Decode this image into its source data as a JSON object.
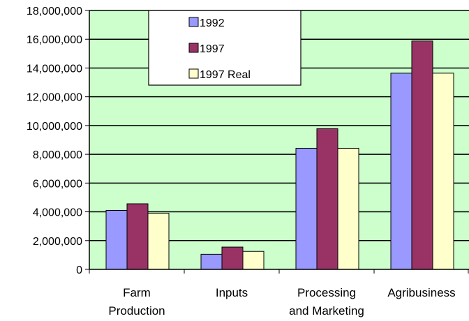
{
  "chart_data": {
    "type": "bar",
    "title": "",
    "xlabel": "",
    "ylabel": "",
    "categories": [
      [
        "Farm",
        "Production"
      ],
      [
        "Inputs"
      ],
      [
        "Processing",
        "and Marketing"
      ],
      [
        "Agribusiness"
      ]
    ],
    "series": [
      {
        "name": "1992",
        "color": "#9999ff",
        "values": [
          4100000,
          1050000,
          8420000,
          13640000
        ]
      },
      {
        "name": "1997",
        "color": "#993366",
        "values": [
          4560000,
          1550000,
          9780000,
          15880000
        ]
      },
      {
        "name": "1997 Real",
        "color": "#ffffcc",
        "values": [
          3900000,
          1250000,
          8420000,
          13640000
        ]
      }
    ],
    "ylim": [
      0,
      18000000
    ],
    "yticks": [
      0,
      2000000,
      4000000,
      6000000,
      8000000,
      10000000,
      12000000,
      14000000,
      16000000,
      18000000
    ],
    "ytick_labels": [
      "0",
      "2,000,000",
      "4,000,000",
      "6,000,000",
      "8,000,000",
      "10,000,000",
      "12,000,000",
      "14,000,000",
      "16,000,000",
      "18,000,000"
    ],
    "grid": true,
    "legend_position": "top-center",
    "plot_background": "#ccffcc"
  }
}
